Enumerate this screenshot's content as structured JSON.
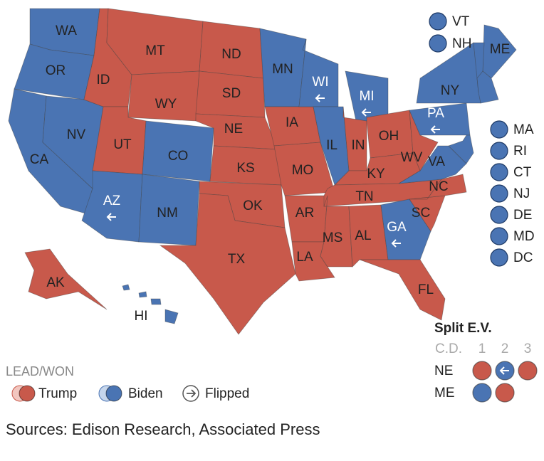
{
  "colors": {
    "Trump": "#c8594b",
    "Biden": "#4a74b3",
    "Trump_lead": "#f2c6bf",
    "Biden_lead": "#c6d6ec"
  },
  "states": [
    {
      "label": "WA",
      "winner": "Biden",
      "flipped": false
    },
    {
      "label": "OR",
      "winner": "Biden",
      "flipped": false
    },
    {
      "label": "CA",
      "winner": "Biden",
      "flipped": false
    },
    {
      "label": "NV",
      "winner": "Biden",
      "flipped": false
    },
    {
      "label": "ID",
      "winner": "Trump",
      "flipped": false
    },
    {
      "label": "MT",
      "winner": "Trump",
      "flipped": false
    },
    {
      "label": "WY",
      "winner": "Trump",
      "flipped": false
    },
    {
      "label": "UT",
      "winner": "Trump",
      "flipped": false
    },
    {
      "label": "CO",
      "winner": "Biden",
      "flipped": false
    },
    {
      "label": "AZ",
      "winner": "Biden",
      "flipped": true
    },
    {
      "label": "NM",
      "winner": "Biden",
      "flipped": false
    },
    {
      "label": "ND",
      "winner": "Trump",
      "flipped": false
    },
    {
      "label": "SD",
      "winner": "Trump",
      "flipped": false
    },
    {
      "label": "NE",
      "winner": "Trump",
      "flipped": false
    },
    {
      "label": "KS",
      "winner": "Trump",
      "flipped": false
    },
    {
      "label": "OK",
      "winner": "Trump",
      "flipped": false
    },
    {
      "label": "TX",
      "winner": "Trump",
      "flipped": false
    },
    {
      "label": "MN",
      "winner": "Biden",
      "flipped": false
    },
    {
      "label": "IA",
      "winner": "Trump",
      "flipped": false
    },
    {
      "label": "MO",
      "winner": "Trump",
      "flipped": false
    },
    {
      "label": "AR",
      "winner": "Trump",
      "flipped": false
    },
    {
      "label": "LA",
      "winner": "Trump",
      "flipped": false
    },
    {
      "label": "WI",
      "winner": "Biden",
      "flipped": true
    },
    {
      "label": "IL",
      "winner": "Biden",
      "flipped": false
    },
    {
      "label": "MI",
      "winner": "Biden",
      "flipped": true
    },
    {
      "label": "IN",
      "winner": "Trump",
      "flipped": false
    },
    {
      "label": "OH",
      "winner": "Trump",
      "flipped": false
    },
    {
      "label": "KY",
      "winner": "Trump",
      "flipped": false
    },
    {
      "label": "TN",
      "winner": "Trump",
      "flipped": false
    },
    {
      "label": "MS",
      "winner": "Trump",
      "flipped": false
    },
    {
      "label": "AL",
      "winner": "Trump",
      "flipped": false
    },
    {
      "label": "GA",
      "winner": "Biden",
      "flipped": true
    },
    {
      "label": "FL",
      "winner": "Trump",
      "flipped": false
    },
    {
      "label": "SC",
      "winner": "Trump",
      "flipped": false
    },
    {
      "label": "NC",
      "winner": "Trump",
      "flipped": false
    },
    {
      "label": "VA",
      "winner": "Biden",
      "flipped": false
    },
    {
      "label": "WV",
      "winner": "Trump",
      "flipped": false
    },
    {
      "label": "PA",
      "winner": "Biden",
      "flipped": true
    },
    {
      "label": "NY",
      "winner": "Biden",
      "flipped": false
    },
    {
      "label": "ME",
      "winner": "Biden",
      "flipped": false
    },
    {
      "label": "AK",
      "winner": "Trump",
      "flipped": false
    },
    {
      "label": "HI",
      "winner": "Biden",
      "flipped": false
    }
  ],
  "small_states": [
    {
      "label": "VT",
      "winner": "Biden"
    },
    {
      "label": "NH",
      "winner": "Biden"
    },
    {
      "label": "MA",
      "winner": "Biden"
    },
    {
      "label": "RI",
      "winner": "Biden"
    },
    {
      "label": "CT",
      "winner": "Biden"
    },
    {
      "label": "NJ",
      "winner": "Biden"
    },
    {
      "label": "DE",
      "winner": "Biden"
    },
    {
      "label": "MD",
      "winner": "Biden"
    },
    {
      "label": "DC",
      "winner": "Biden"
    }
  ],
  "split": {
    "title": "Split E.V.",
    "header": [
      "C.D.",
      "1",
      "2",
      "3"
    ],
    "rows": [
      {
        "label": "NE",
        "districts": [
          {
            "winner": "Trump",
            "flipped": false
          },
          {
            "winner": "Biden",
            "flipped": true
          },
          {
            "winner": "Trump",
            "flipped": false
          }
        ]
      },
      {
        "label": "ME",
        "districts": [
          {
            "winner": "Biden",
            "flipped": false
          },
          {
            "winner": "Trump",
            "flipped": false
          }
        ]
      }
    ]
  },
  "legend": {
    "title": "LEAD/WON",
    "trump": "Trump",
    "biden": "Biden",
    "flipped": "Flipped"
  },
  "source": "Sources: Edison Research, Associated Press"
}
